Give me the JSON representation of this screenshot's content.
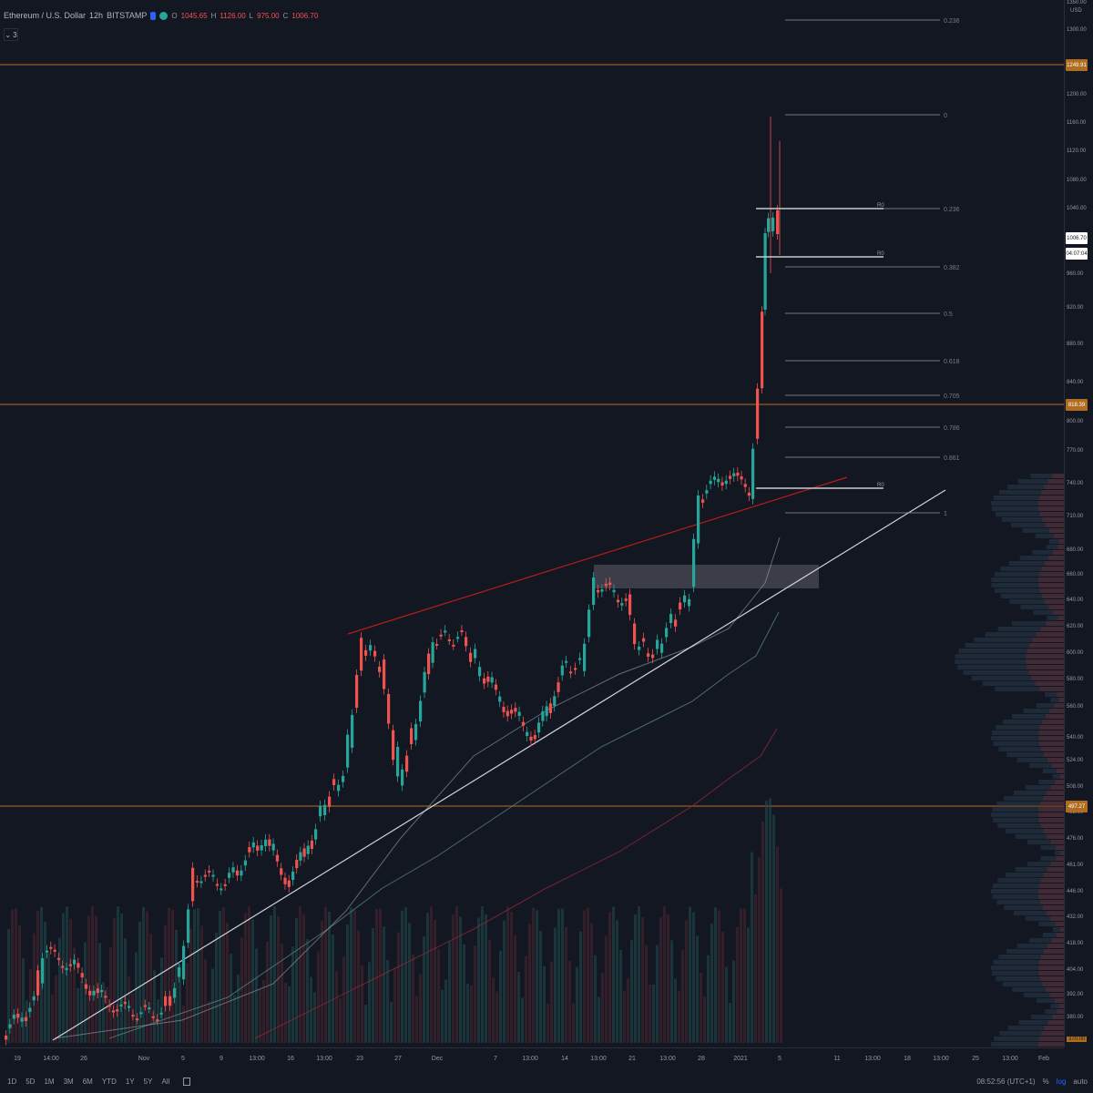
{
  "legend": {
    "symbol": "Ethereum / U.S. Dollar",
    "interval": "12h",
    "exchange": "BITSTAMP",
    "o_label": "O",
    "o_value": "1045.65",
    "h_label": "H",
    "h_value": "1126.00",
    "l_label": "L",
    "l_value": "975.00",
    "c_label": "C",
    "c_value": "1006.70",
    "studies_count": "3"
  },
  "price_axis": {
    "currency": "USD",
    "ticks": [
      "1300.00",
      "1200.00",
      "1160.00",
      "1120.00",
      "1080.00",
      "1040.00",
      "960.00",
      "920.00",
      "880.00",
      "840.00",
      "800.00",
      "770.00",
      "740.00",
      "710.00",
      "680.00",
      "660.00",
      "640.00",
      "620.00",
      "600.00",
      "580.00",
      "560.00",
      "540.00",
      "524.00",
      "508.00",
      "492.00",
      "476.00",
      "461.00",
      "446.00",
      "432.00",
      "418.00",
      "404.00",
      "392.00",
      "380.00"
    ],
    "top_partial": "1350.00",
    "bottom_partial": "370.00",
    "level_labels": [
      "1249.91",
      "818.39",
      "497.27"
    ],
    "last_price": "1006.70",
    "countdown": "04:07:04"
  },
  "fib_levels": [
    "0.236",
    "0",
    "0.236",
    "0.382",
    "0.5",
    "0.618",
    "0.705",
    "0.786",
    "0.861",
    "1"
  ],
  "range_labels": [
    "R0",
    "R0",
    "R0"
  ],
  "time_axis": [
    "19",
    "14:00",
    "26",
    "Nov",
    "5",
    "9",
    "13:00",
    "16",
    "13:00",
    "23",
    "27",
    "Dec",
    "7",
    "13:00",
    "14",
    "13:00",
    "21",
    "13:00",
    "28",
    "2021",
    "5",
    "11",
    "13:00",
    "18",
    "13:00",
    "25",
    "13:00",
    "Feb"
  ],
  "bottom_bar": {
    "timeframes": [
      "1D",
      "5D",
      "1M",
      "3M",
      "6M",
      "YTD",
      "1Y",
      "5Y",
      "All"
    ],
    "clock": "08:52:56 (UTC+1)",
    "percent": "%",
    "log": "log",
    "auto": "auto"
  },
  "colors": {
    "up": "#26a69a",
    "down": "#ef5350",
    "level_line": "#b06c1f",
    "trend_red": "#b71c1c",
    "trend_white": "#d1d4dc"
  }
}
